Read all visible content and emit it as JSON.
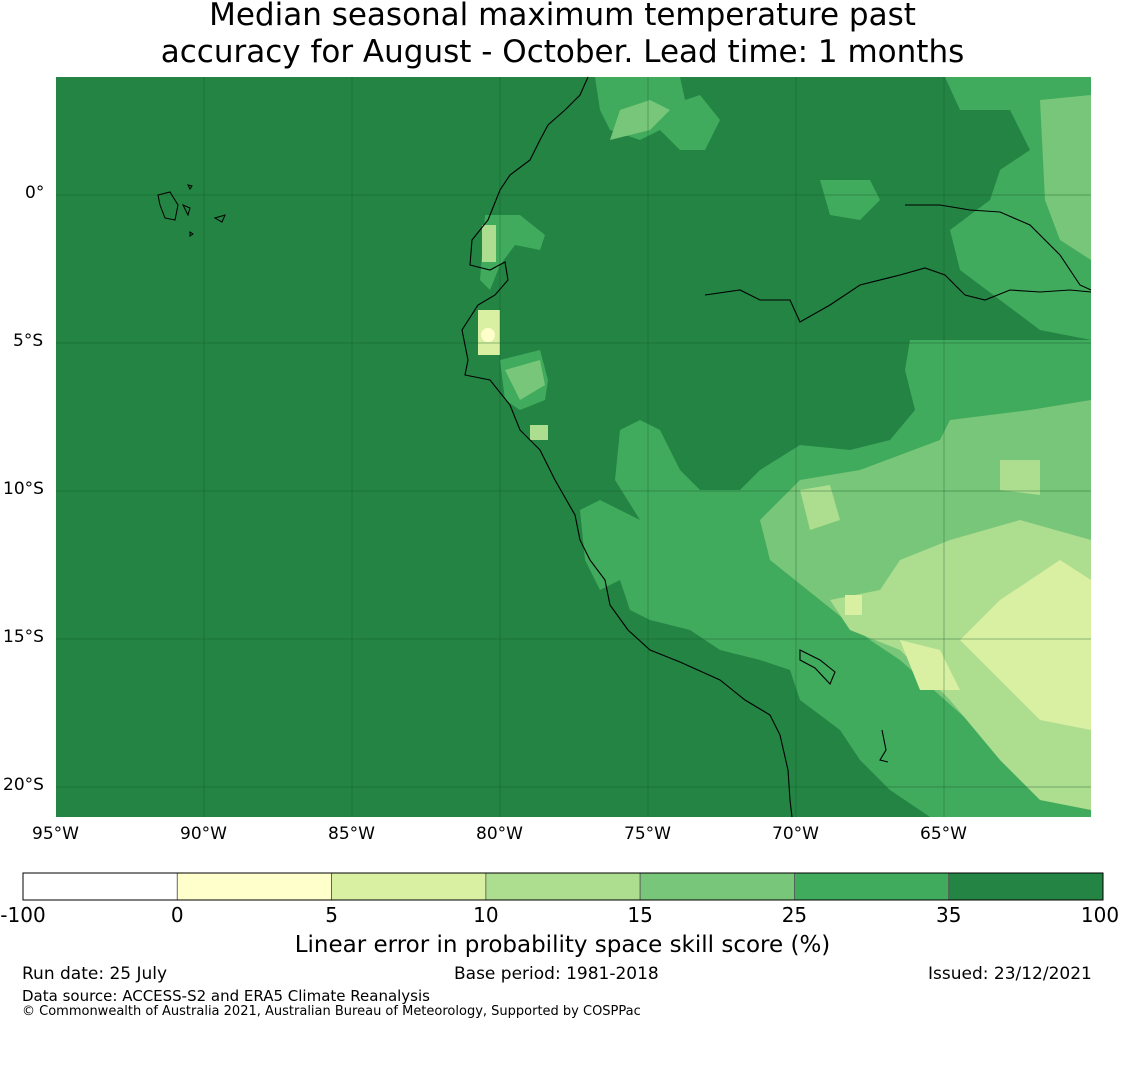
{
  "title": {
    "line1": "Median seasonal maximum temperature past",
    "line2": "accuracy for August - October. Lead time: 1 months"
  },
  "map": {
    "lat_ticks": [
      "0°",
      "5°S",
      "10°S",
      "15°S",
      "20°S"
    ],
    "lon_ticks": [
      "95°W",
      "90°W",
      "85°W",
      "80°W",
      "75°W",
      "70°W",
      "65°W"
    ],
    "lon_range": [
      -95,
      -60
    ],
    "lat_range": [
      -21,
      4
    ]
  },
  "colorbar": {
    "boundaries": [
      "-100",
      "0",
      "5",
      "10",
      "15",
      "25",
      "35",
      "100"
    ],
    "colors": [
      "#ffffff",
      "#ffffcc",
      "#d9f0a3",
      "#addd8e",
      "#78c679",
      "#41ab5d",
      "#238443"
    ],
    "label": "Linear error in probability space skill score (%)"
  },
  "footer": {
    "run_date": "Run date: 25 July",
    "base_period": "Base period: 1981-2018",
    "issued": "Issued: 23/12/2021",
    "data_source": "Data source: ACCESS-S2 and ERA5 Climate Reanalysis",
    "copyright": "© Commonwealth of Australia 2021, Australian Bureau of Meteorology, Supported by COSPPac"
  }
}
